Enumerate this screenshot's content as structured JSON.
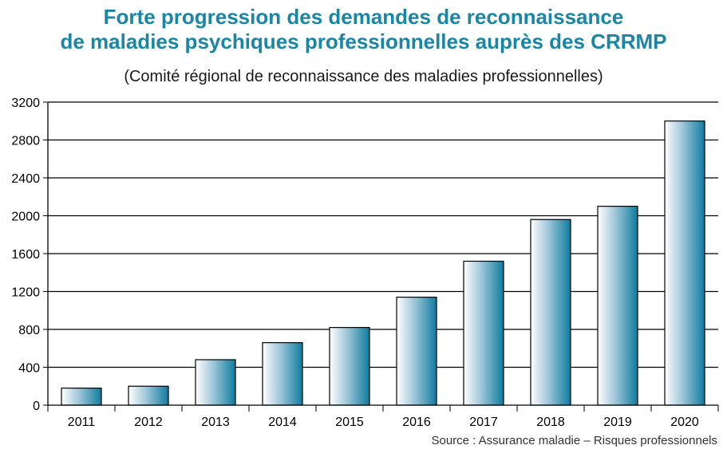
{
  "title_line1": "Forte progression des demandes de reconnaissance",
  "title_line2": "de maladies psychiques professionnelles auprès des CRRMP",
  "subtitle": "(Comité régional de reconnaissance des maladies professionnelles)",
  "source": "Source : Assurance maladie – Risques professionnels",
  "colors": {
    "title": "#1a86a6",
    "bar_dark": "#0e7c9e",
    "bar_light": "#ffffff"
  },
  "chart_data": {
    "type": "bar",
    "categories": [
      "2011",
      "2012",
      "2013",
      "2014",
      "2015",
      "2016",
      "2017",
      "2018",
      "2019",
      "2020"
    ],
    "values": [
      180,
      200,
      480,
      660,
      820,
      1140,
      1520,
      1960,
      2100,
      3000
    ],
    "ylim": [
      0,
      3200
    ],
    "yticks": [
      0,
      400,
      800,
      1200,
      1600,
      2000,
      2400,
      2800,
      3200
    ],
    "grid": "horizontal"
  }
}
